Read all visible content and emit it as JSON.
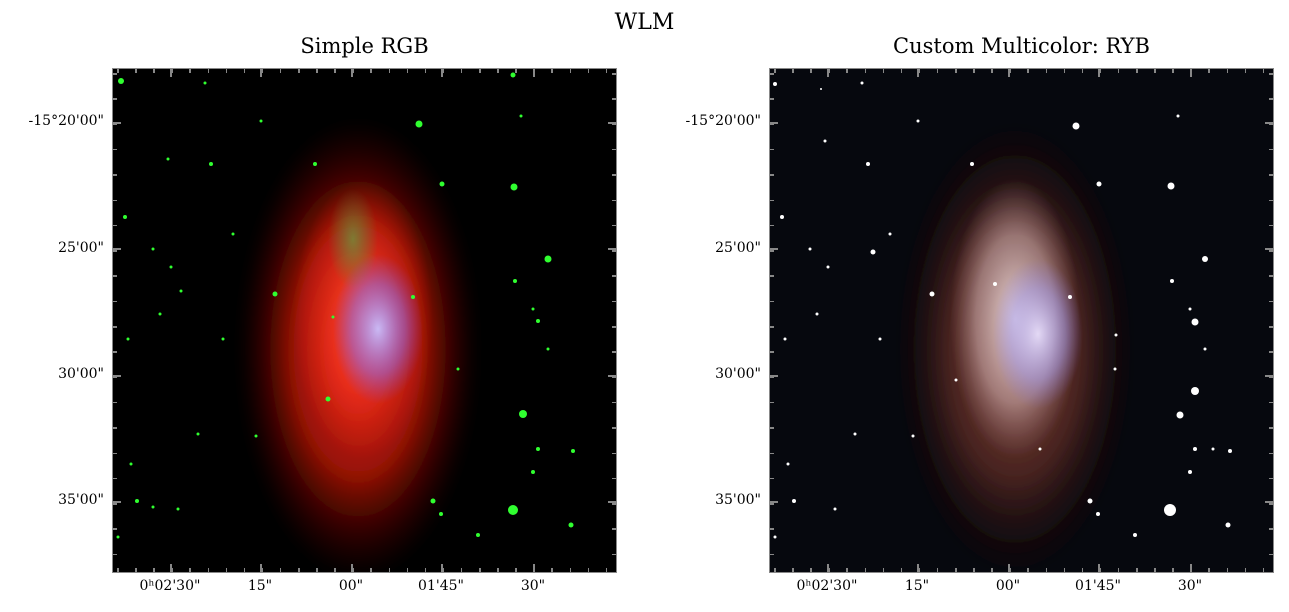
{
  "figure_title": "WLM",
  "panels": [
    {
      "title": "Simple RGB",
      "y_ticks": [
        "-15°20'00\"",
        "25'00\"",
        "30'00\"",
        "35'00\""
      ],
      "x_ticks": [
        "0ʰ02'30\"",
        "15\"",
        "00\"",
        "01'45\"",
        "30\""
      ]
    },
    {
      "title": "Custom Multicolor: RYB",
      "y_ticks": [
        "-15°20'00\"",
        "25'00\"",
        "30'00\"",
        "35'00\""
      ],
      "x_ticks": [
        "0ʰ02'30\"",
        "15\"",
        "00\"",
        "01'45\"",
        "30\""
      ]
    }
  ]
}
